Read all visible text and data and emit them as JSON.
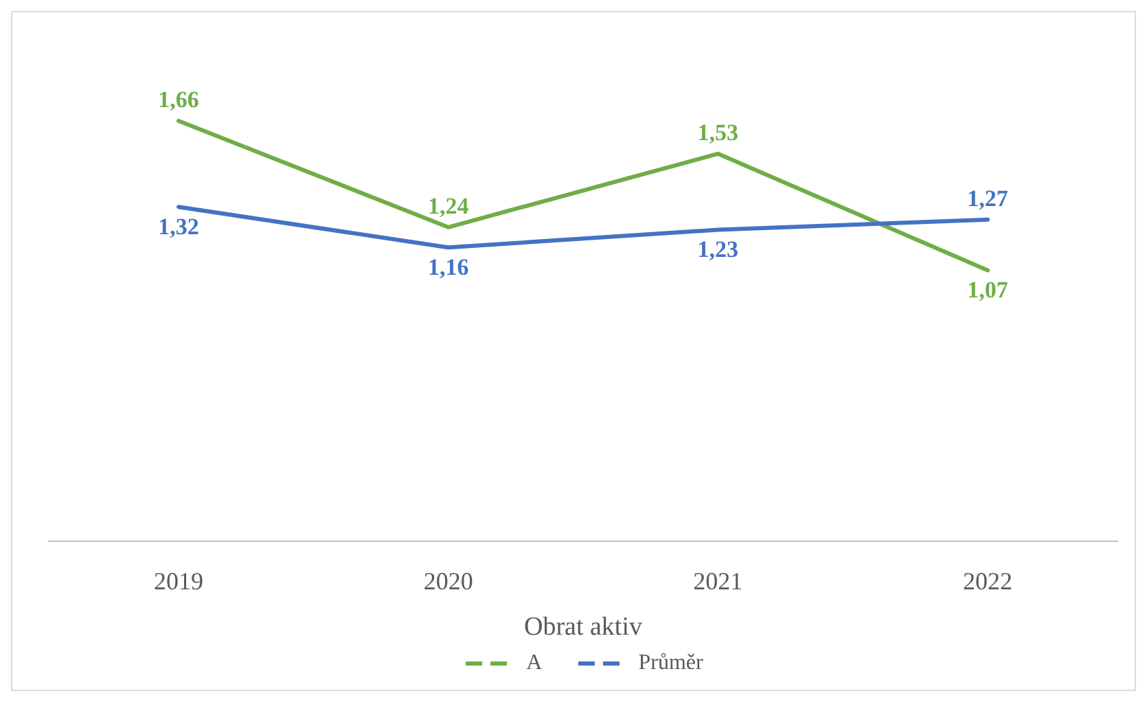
{
  "chart_data": {
    "type": "line",
    "xlabel": "Obrat aktiv",
    "categories": [
      "2019",
      "2020",
      "2021",
      "2022"
    ],
    "series": [
      {
        "name": "A",
        "color": "#70ad47",
        "values": [
          1.66,
          1.24,
          1.53,
          1.07
        ],
        "value_labels": [
          "1,66",
          "1,24",
          "1,53",
          "1,07"
        ]
      },
      {
        "name": "Průměr",
        "color": "#4472c4",
        "values": [
          1.32,
          1.16,
          1.23,
          1.27
        ],
        "value_labels": [
          "1,32",
          "1,16",
          "1,23",
          "1,27"
        ]
      }
    ],
    "legend": "bottom",
    "marker": "none",
    "line_style": "solid"
  }
}
